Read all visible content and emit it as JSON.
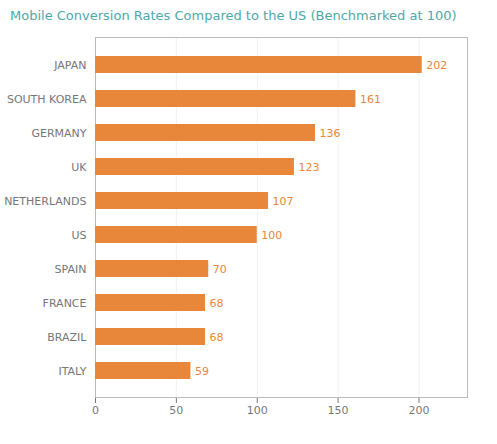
{
  "chart_data": {
    "type": "bar",
    "orientation": "horizontal",
    "title": "Mobile Conversion Rates Compared to the US (Benchmarked at 100)",
    "categories": [
      "ITALY",
      "BRAZIL",
      "FRANCE",
      "SPAIN",
      "US",
      "NETHERLANDS",
      "UK",
      "GERMANY",
      "SOUTH KOREA",
      "JAPAN"
    ],
    "values": [
      59,
      68,
      68,
      70,
      100,
      107,
      123,
      136,
      161,
      202
    ],
    "color": "#e8863a",
    "xlim": [
      0,
      230
    ],
    "xticks": [
      0,
      50,
      100,
      150,
      200
    ],
    "grid": true,
    "data_labels": true
  }
}
